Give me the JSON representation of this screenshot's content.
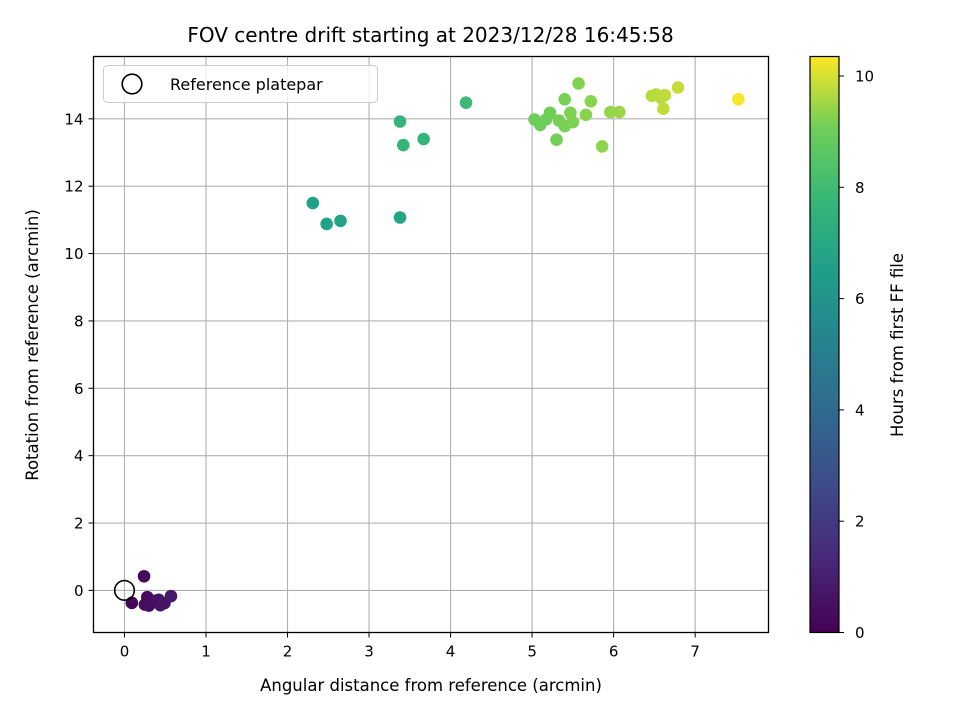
{
  "chart_data": {
    "type": "scatter",
    "title": "FOV centre drift starting at 2023/12/28 16:45:58",
    "xlabel": "Angular distance from reference (arcmin)",
    "ylabel": "Rotation from reference (arcmin)",
    "xlim": [
      -0.38,
      7.9
    ],
    "ylim": [
      -1.25,
      15.85
    ],
    "x_ticks": [
      "0",
      "1",
      "2",
      "3",
      "4",
      "5",
      "6",
      "7"
    ],
    "y_ticks": [
      "0",
      "2",
      "4",
      "6",
      "8",
      "10",
      "12",
      "14"
    ],
    "grid": true,
    "legend": {
      "position": "top-left",
      "entries": [
        "Reference platepar"
      ]
    },
    "reference_point": {
      "x": 0,
      "y": 0
    },
    "colorbar": {
      "label": "Hours from first FF file",
      "range": [
        0,
        10.35
      ],
      "ticks": [
        "0",
        "2",
        "4",
        "6",
        "8",
        "10"
      ],
      "colormap": "viridis"
    },
    "points": [
      {
        "x": 0.09,
        "y": -0.37,
        "hours": 0.15
      },
      {
        "x": 0.24,
        "y": 0.42,
        "hours": 0.25
      },
      {
        "x": 0.25,
        "y": -0.42,
        "hours": 0.3
      },
      {
        "x": 0.28,
        "y": -0.2,
        "hours": 0.35
      },
      {
        "x": 0.3,
        "y": -0.45,
        "hours": 0.4
      },
      {
        "x": 0.35,
        "y": -0.32,
        "hours": 0.45
      },
      {
        "x": 0.39,
        "y": -0.3,
        "hours": 0.5
      },
      {
        "x": 0.42,
        "y": -0.28,
        "hours": 0.55
      },
      {
        "x": 0.44,
        "y": -0.44,
        "hours": 0.6
      },
      {
        "x": 0.49,
        "y": -0.38,
        "hours": 0.65
      },
      {
        "x": 0.57,
        "y": -0.17,
        "hours": 0.75
      },
      {
        "x": 2.31,
        "y": 11.5,
        "hours": 6.6
      },
      {
        "x": 2.48,
        "y": 10.88,
        "hours": 6.65
      },
      {
        "x": 2.65,
        "y": 10.97,
        "hours": 6.7
      },
      {
        "x": 3.38,
        "y": 11.07,
        "hours": 6.8
      },
      {
        "x": 3.38,
        "y": 13.92,
        "hours": 7.6
      },
      {
        "x": 3.42,
        "y": 13.22,
        "hours": 7.65
      },
      {
        "x": 3.67,
        "y": 13.4,
        "hours": 7.7
      },
      {
        "x": 4.19,
        "y": 14.48,
        "hours": 7.9
      },
      {
        "x": 5.03,
        "y": 13.98,
        "hours": 9.0
      },
      {
        "x": 5.1,
        "y": 13.82,
        "hours": 9.0
      },
      {
        "x": 5.17,
        "y": 13.98,
        "hours": 9.05
      },
      {
        "x": 5.22,
        "y": 14.18,
        "hours": 9.05
      },
      {
        "x": 5.3,
        "y": 13.38,
        "hours": 9.1
      },
      {
        "x": 5.33,
        "y": 13.95,
        "hours": 9.1
      },
      {
        "x": 5.4,
        "y": 14.58,
        "hours": 9.15
      },
      {
        "x": 5.4,
        "y": 13.78,
        "hours": 9.15
      },
      {
        "x": 5.47,
        "y": 14.18,
        "hours": 9.2
      },
      {
        "x": 5.5,
        "y": 13.9,
        "hours": 9.2
      },
      {
        "x": 5.57,
        "y": 15.05,
        "hours": 9.25
      },
      {
        "x": 5.66,
        "y": 14.12,
        "hours": 9.3
      },
      {
        "x": 5.72,
        "y": 14.52,
        "hours": 9.3
      },
      {
        "x": 5.86,
        "y": 13.18,
        "hours": 9.35
      },
      {
        "x": 5.96,
        "y": 14.2,
        "hours": 9.4
      },
      {
        "x": 6.07,
        "y": 14.2,
        "hours": 9.45
      },
      {
        "x": 6.47,
        "y": 14.68,
        "hours": 9.7
      },
      {
        "x": 6.52,
        "y": 14.72,
        "hours": 9.75
      },
      {
        "x": 6.58,
        "y": 14.62,
        "hours": 9.75
      },
      {
        "x": 6.61,
        "y": 14.3,
        "hours": 9.8
      },
      {
        "x": 6.63,
        "y": 14.7,
        "hours": 9.8
      },
      {
        "x": 6.79,
        "y": 14.93,
        "hours": 9.85
      },
      {
        "x": 7.53,
        "y": 14.58,
        "hours": 10.3
      }
    ]
  }
}
